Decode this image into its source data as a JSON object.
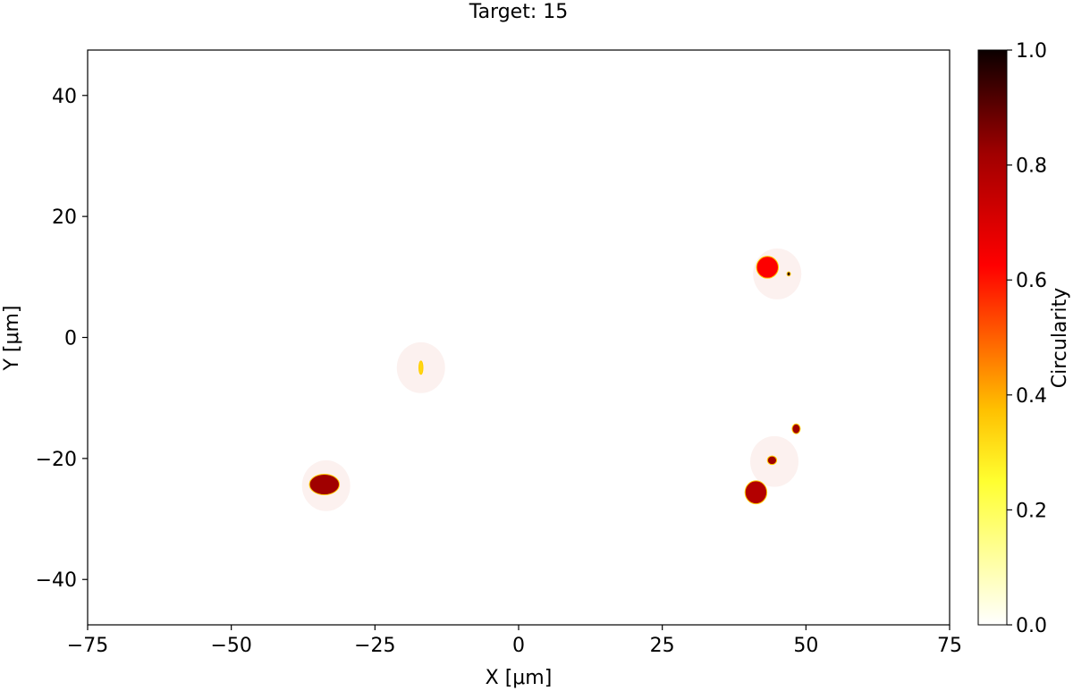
{
  "chart_data": {
    "type": "scatter",
    "title": "Target: 15",
    "xlabel": "X [μm]",
    "ylabel": "Y [μm]",
    "xlim": [
      -75,
      75
    ],
    "ylim": [
      -47.5,
      47.5
    ],
    "xticks": [
      -75,
      -50,
      -25,
      0,
      25,
      50,
      75
    ],
    "xtick_labels": [
      "−75",
      "−50",
      "−25",
      "0",
      "25",
      "50",
      "75"
    ],
    "yticks": [
      -40,
      -20,
      0,
      20,
      40
    ],
    "ytick_labels": [
      "−40",
      "−20",
      "0",
      "20",
      "40"
    ],
    "grid": false,
    "colorbar": {
      "label": "Circularity",
      "colormap": "hot_r",
      "range": [
        0,
        1
      ],
      "ticks": [
        0.0,
        0.2,
        0.4,
        0.6,
        0.8,
        1.0
      ],
      "tick_labels": [
        "0.0",
        "0.2",
        "0.4",
        "0.6",
        "0.8",
        "1.0"
      ]
    },
    "target_circles": [
      {
        "x": -33.5,
        "y": -24.5,
        "r": 4.2
      },
      {
        "x": -17.0,
        "y": -5.0,
        "r": 4.2
      },
      {
        "x": 45.0,
        "y": 10.5,
        "r": 4.2
      },
      {
        "x": 44.5,
        "y": -20.5,
        "r": 4.2
      }
    ],
    "particles": [
      {
        "x": -33.8,
        "y": -24.3,
        "rx": 2.6,
        "ry": 1.7,
        "circularity": 0.82
      },
      {
        "x": -17.0,
        "y": -5.0,
        "rx": 0.35,
        "ry": 1.1,
        "circularity": 0.33
      },
      {
        "x": 43.3,
        "y": 11.6,
        "rx": 1.9,
        "ry": 1.8,
        "circularity": 0.63
      },
      {
        "x": 47.0,
        "y": 10.5,
        "rx": 0.3,
        "ry": 0.35,
        "circularity": 0.95
      },
      {
        "x": 48.3,
        "y": -15.1,
        "rx": 0.7,
        "ry": 0.8,
        "circularity": 0.82
      },
      {
        "x": 44.1,
        "y": -20.3,
        "rx": 0.8,
        "ry": 0.7,
        "circularity": 0.82
      },
      {
        "x": 41.3,
        "y": -25.6,
        "rx": 1.9,
        "ry": 1.9,
        "circularity": 0.78
      }
    ]
  }
}
